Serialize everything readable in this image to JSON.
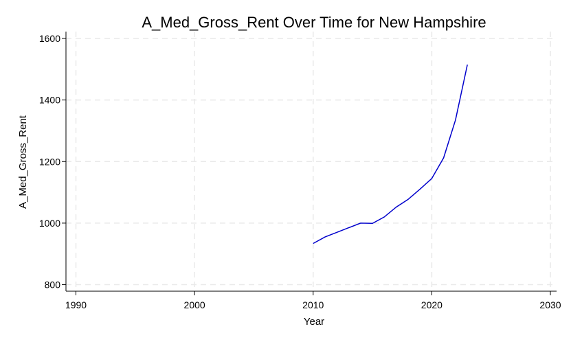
{
  "chart_data": {
    "type": "line",
    "title": "A_Med_Gross_Rent Over Time for New Hampshire",
    "xlabel": "Year",
    "ylabel": "A_Med_Gross_Rent",
    "xlim": [
      1990,
      2030
    ],
    "ylim": [
      780,
      1620
    ],
    "xticks": [
      1990,
      2000,
      2010,
      2020,
      2030
    ],
    "yticks": [
      800,
      1000,
      1200,
      1400,
      1600
    ],
    "grid": true,
    "line_color": "#0000cc",
    "series": [
      {
        "x": [
          2010,
          2011,
          2012,
          2013,
          2014,
          2015,
          2016,
          2017,
          2018,
          2019,
          2020,
          2021,
          2022,
          2023
        ],
        "values": [
          934,
          955,
          970,
          985,
          1000,
          999,
          1020,
          1052,
          1077,
          1110,
          1145,
          1212,
          1335,
          1515
        ]
      }
    ]
  }
}
